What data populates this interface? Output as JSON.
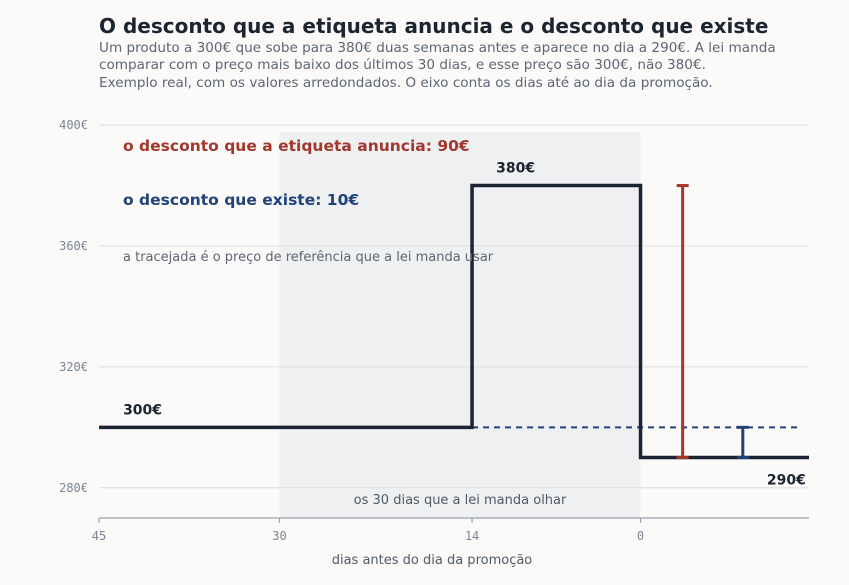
{
  "title": "O desconto que a etiqueta anuncia e o desconto que existe",
  "subtitle_lines": [
    "Um produto a 300€ que sobe para 380€ duas semanas antes e aparece no dia a 290€. A lei manda",
    "comparar com o preço mais baixo dos últimos 30 dias, e esse preço são 300€, não 380€.",
    "Exemplo real, com os valores arredondados. O eixo conta os dias até ao dia da promoção."
  ],
  "colors": {
    "price_line": "#1b2430",
    "announced": "#a3372b",
    "real": "#22427a",
    "window_band": "#eff0f2",
    "grid": "#dedede"
  },
  "chart_data": {
    "type": "line",
    "step": true,
    "xlabel": "dias antes do dia da promoção",
    "x_ticks": [
      45,
      30,
      14,
      0
    ],
    "x_reversed": true,
    "xlim": [
      45,
      -14
    ],
    "ylim": [
      270,
      405
    ],
    "y_ticks": [
      280,
      320,
      360,
      400
    ],
    "y_tick_labels": [
      "280€",
      "320€",
      "360€",
      "400€"
    ],
    "grid": "horizontal",
    "series": [
      {
        "points": [
          [
            45,
            300
          ],
          [
            14,
            300
          ],
          [
            14,
            380
          ],
          [
            0,
            380
          ],
          [
            0,
            290
          ],
          [
            -14,
            290
          ]
        ]
      }
    ],
    "reference_line": {
      "value": 300,
      "from_x": 14,
      "to_x": -13,
      "style": "dashed"
    },
    "window": {
      "from_x": 30,
      "to_x": 0,
      "label": "os 30 dias que a lei manda olhar"
    },
    "value_labels": [
      {
        "text": "300€",
        "x": 43,
        "y": 300
      },
      {
        "text": "380€",
        "x": 12,
        "y": 380
      },
      {
        "text": "290€",
        "x": -10.5,
        "y": 290
      }
    ],
    "discount_bars": [
      {
        "name": "announced",
        "x": -3.5,
        "from": 290,
        "to": 380
      },
      {
        "name": "real",
        "x": -8.5,
        "from": 290,
        "to": 300
      }
    ],
    "annotations": [
      {
        "text": "o desconto que a etiqueta anuncia: 90€",
        "color": "announced"
      },
      {
        "text": "o desconto que existe: 10€",
        "color": "real"
      },
      {
        "text": "a tracejada é o preço de referência que a lei manda usar",
        "color": "note"
      }
    ]
  }
}
